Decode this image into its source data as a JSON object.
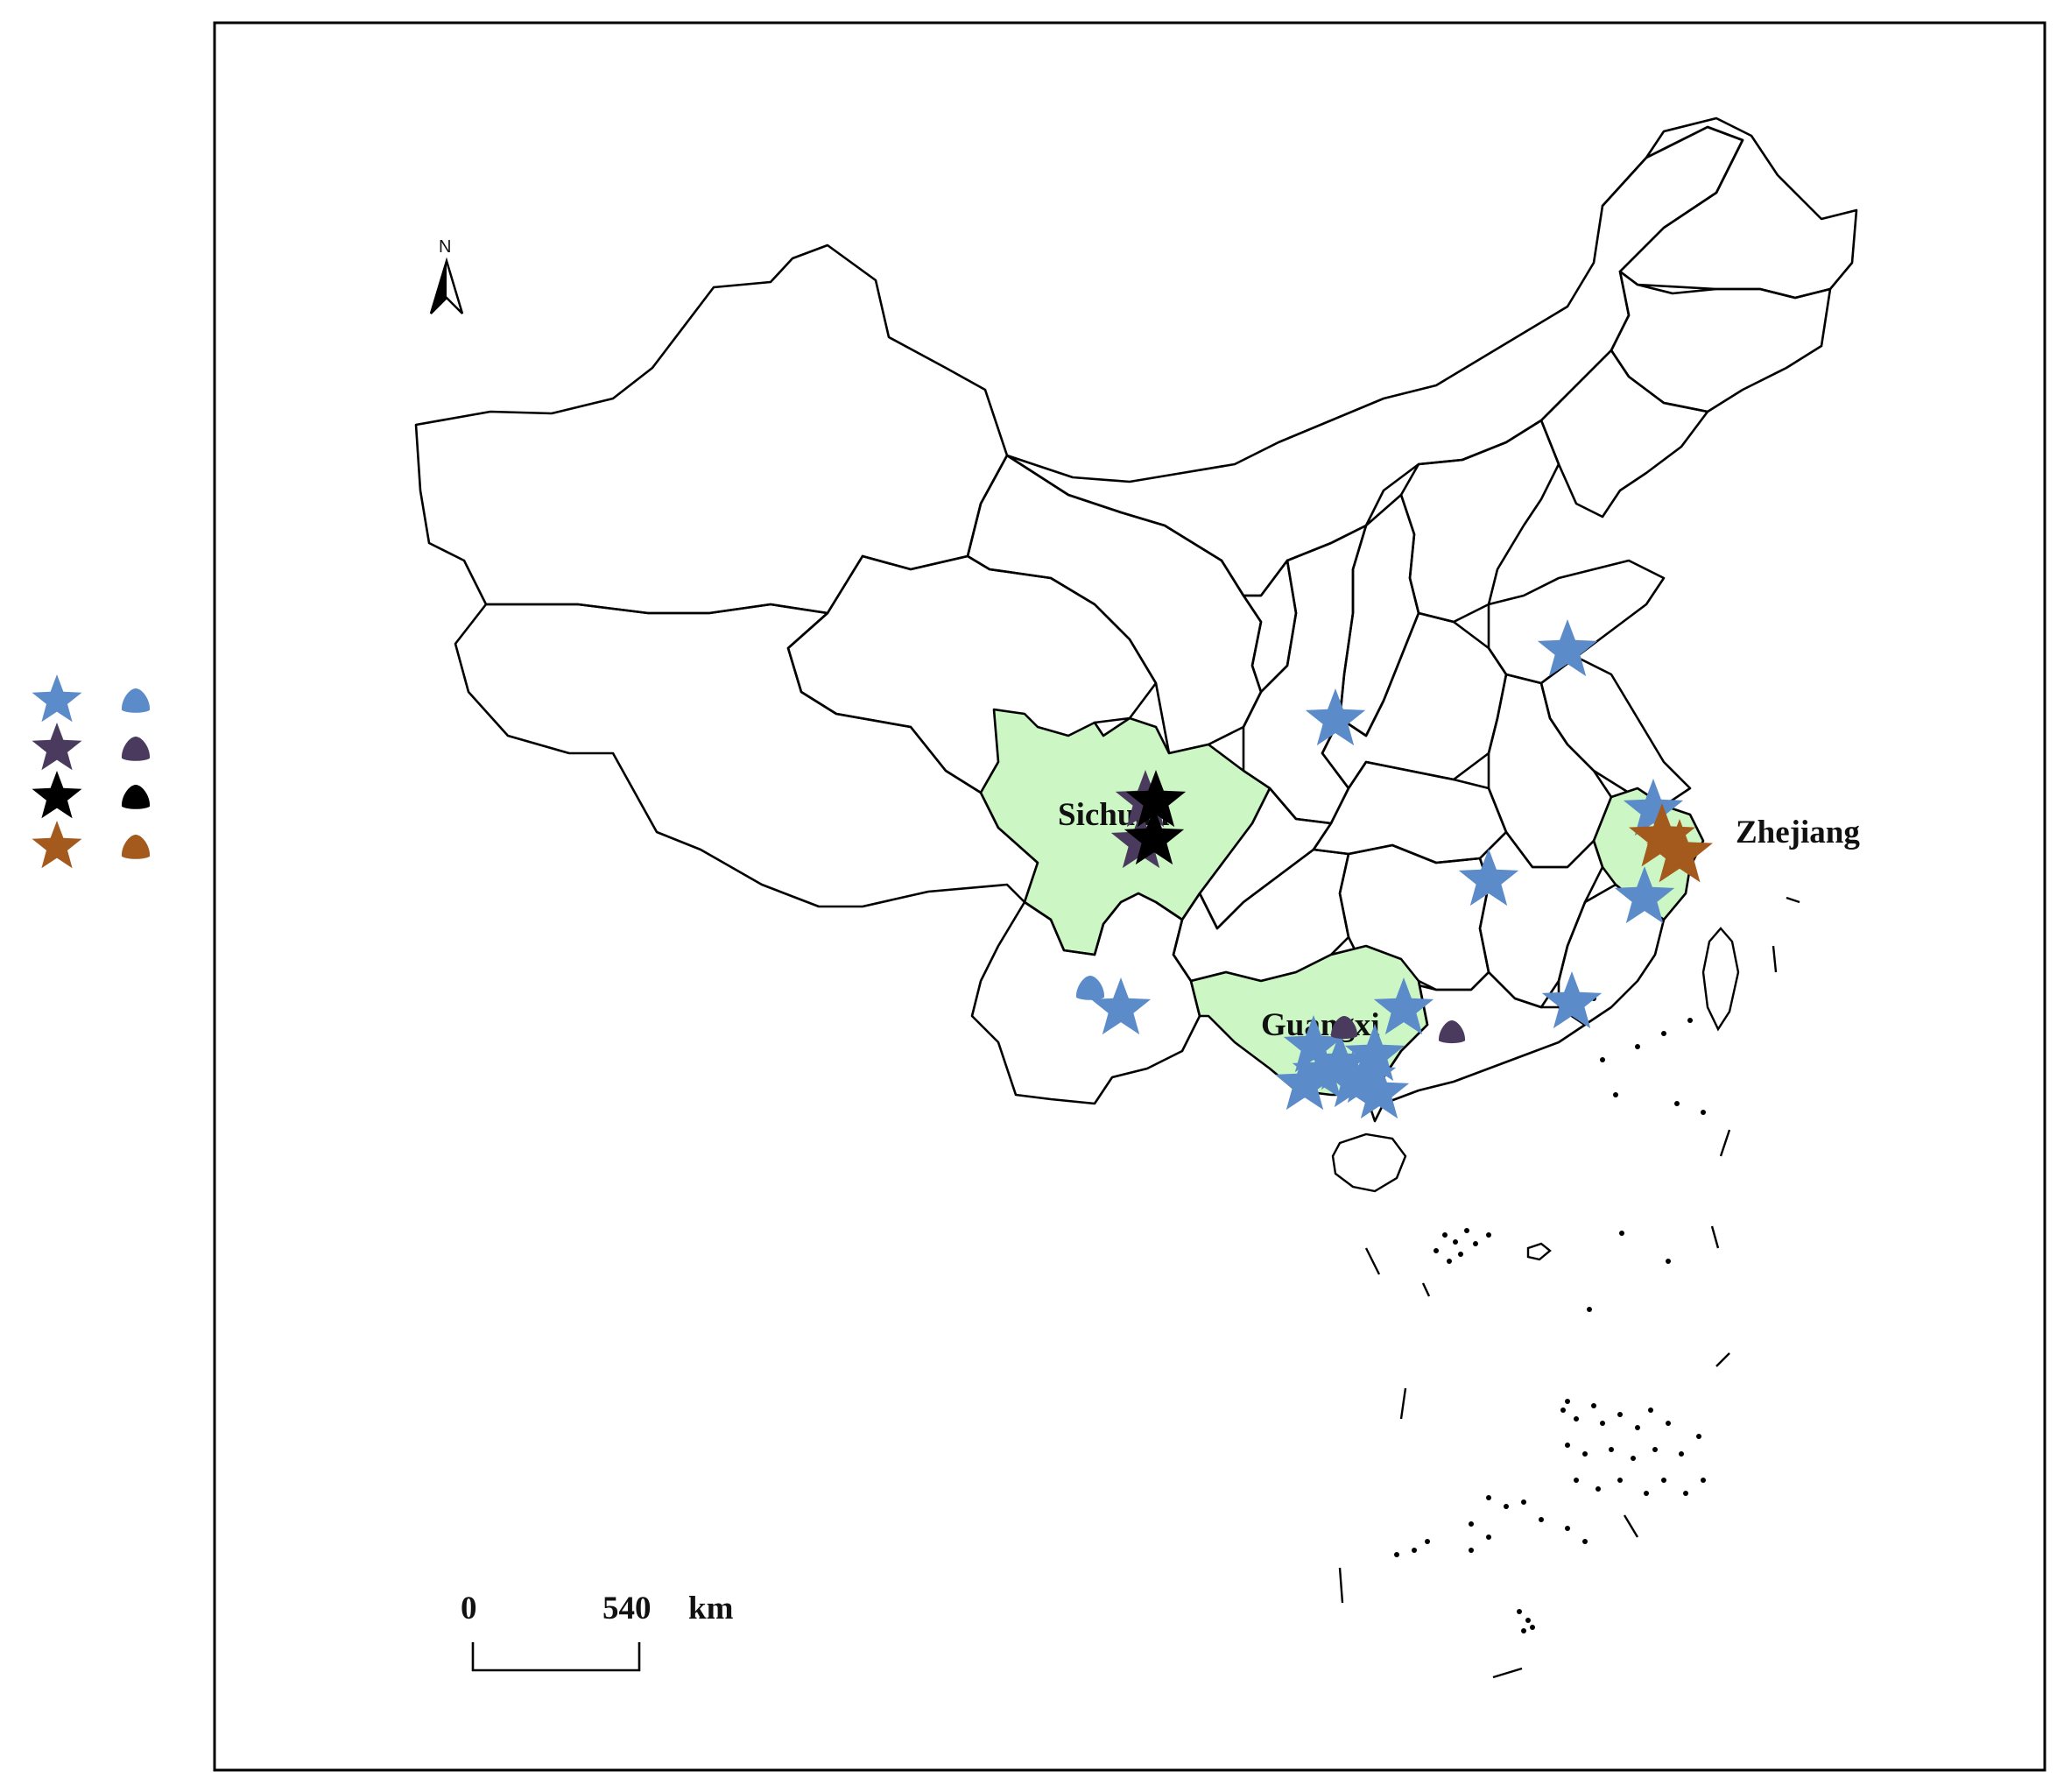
{
  "colors": {
    "blue": "#5b8bc9",
    "purple": "#4a3b5e",
    "black": "#000000",
    "brown": "#a35a1c",
    "highlight": "#ccf7c4"
  },
  "legend": [
    {
      "color": "blue",
      "star_icon": "star-icon",
      "blob_icon": "drop-icon"
    },
    {
      "color": "purple",
      "star_icon": "star-icon",
      "blob_icon": "drop-icon"
    },
    {
      "color": "black",
      "star_icon": "star-icon",
      "blob_icon": "drop-icon"
    },
    {
      "color": "brown",
      "star_icon": "star-icon",
      "blob_icon": "drop-icon"
    }
  ],
  "map": {
    "north_label": "N",
    "regions": {
      "sichuan": "Sichuan",
      "guangxi": "Guangxi",
      "zhejiang": "Zhejiang"
    },
    "scale": {
      "start": "0",
      "end": "540",
      "unit": "km"
    }
  },
  "markers": {
    "blue_stars": 16,
    "purple_stars": 2,
    "black_stars": 2,
    "brown_stars": 2,
    "blue_blobs": 1,
    "purple_blobs": 2
  }
}
